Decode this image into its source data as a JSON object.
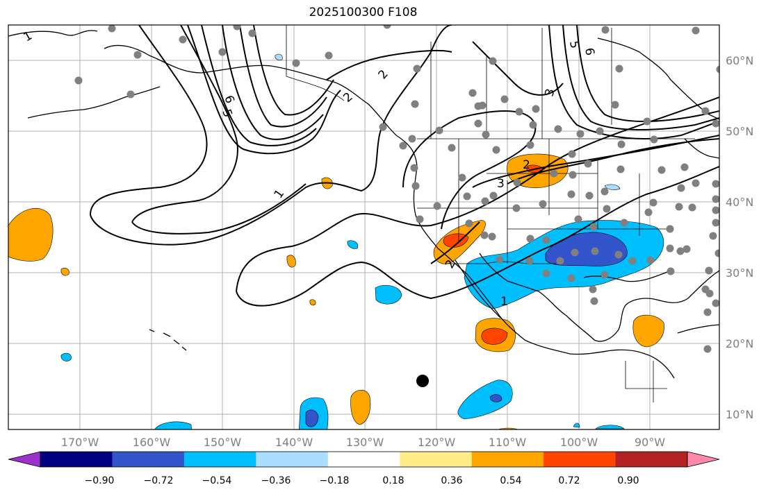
{
  "title": "2025100300 F108",
  "lon_labels": [
    "170°W",
    "160°W",
    "150°W",
    "140°W",
    "130°W",
    "120°W",
    "110°W",
    "100°W",
    "90°W"
  ],
  "lat_labels": [
    "60°N",
    "50°N",
    "40°N",
    "30°N",
    "20°N",
    "10°N"
  ],
  "colorbar": {
    "colors": [
      "#9933cc",
      "#000080",
      "#3355cc",
      "#00bfff",
      "#aaddff",
      "#ffffff",
      "#ffee88",
      "#ffa500",
      "#ff4500",
      "#b22222",
      "#ff88aa"
    ],
    "tick_labels": [
      "−0.90",
      "−0.72",
      "−0.54",
      "−0.36",
      "−0.18",
      "0.18",
      "0.36",
      "0.54",
      "0.72",
      "0.90"
    ]
  },
  "contour_labels": [
    "1",
    "6",
    "5",
    "1",
    "2",
    "5",
    "6",
    "3",
    "2",
    "3",
    "1",
    "2",
    "2"
  ],
  "marker": {
    "color": "#000000"
  },
  "station_color": "#808080"
}
